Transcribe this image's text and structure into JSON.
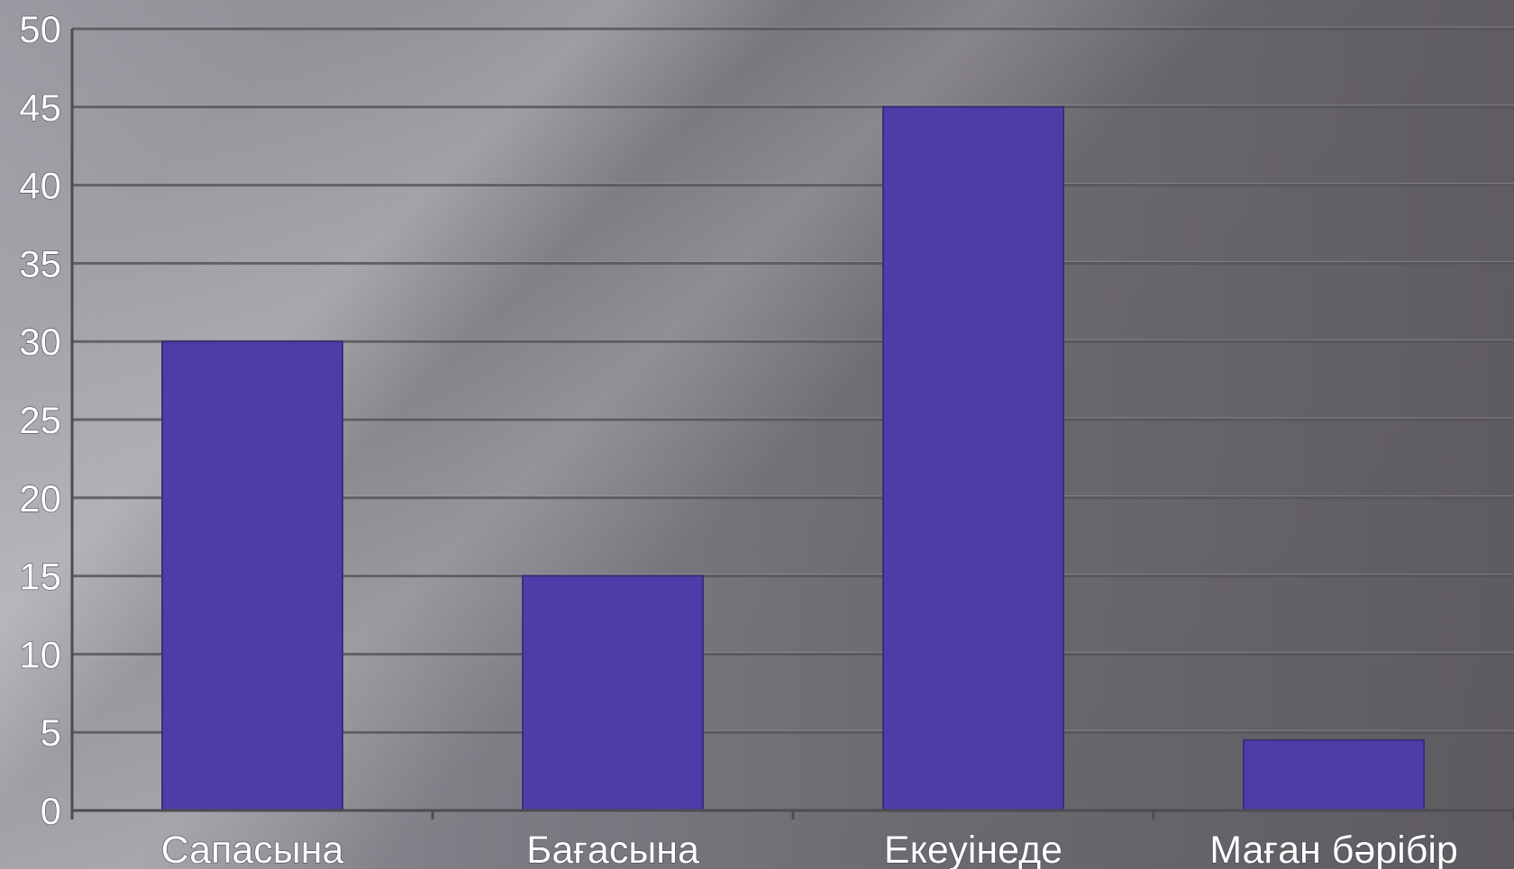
{
  "chart_data": {
    "type": "bar",
    "categories": [
      "Сапасына",
      "Бағасына",
      "Екеуінеде",
      "Маған бәрібір"
    ],
    "values": [
      30,
      15,
      45,
      4.5
    ],
    "y_ticks": [
      "0",
      "5",
      "10",
      "15",
      "20",
      "25",
      "30",
      "35",
      "40",
      "45",
      "50"
    ],
    "ylim": [
      0,
      50
    ],
    "grid": true,
    "legend": "none",
    "bar_color": "#503ca8"
  }
}
